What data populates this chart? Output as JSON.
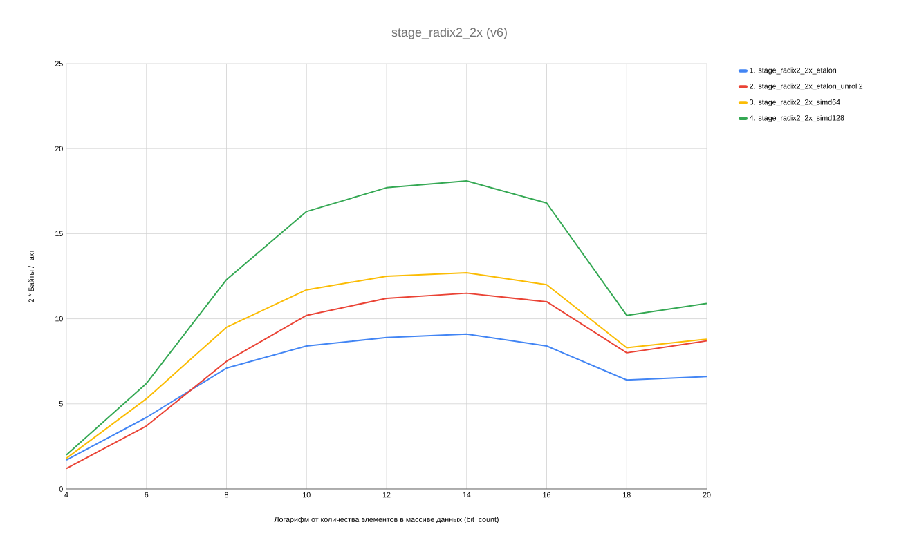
{
  "chart_data": {
    "type": "line",
    "title": "stage_radix2_2x (v6)",
    "xlabel": "Логарифм от количества элементов в массиве данных (bit_count)",
    "ylabel": "2 * Байты / такт",
    "x": [
      4,
      6,
      8,
      10,
      12,
      14,
      16,
      18,
      20
    ],
    "series": [
      {
        "name": "1. stage_radix2_2x_etalon",
        "color": "#4285f4",
        "values": [
          1.7,
          4.2,
          7.1,
          8.4,
          8.9,
          9.1,
          8.4,
          6.4,
          6.6
        ]
      },
      {
        "name": "2. stage_radix2_2x_etalon_unroll2",
        "color": "#ea4335",
        "values": [
          1.2,
          3.7,
          7.5,
          10.2,
          11.2,
          11.5,
          11.0,
          8.0,
          8.7
        ]
      },
      {
        "name": "3. stage_radix2_2x_simd64",
        "color": "#fbbc04",
        "values": [
          1.8,
          5.3,
          9.5,
          11.7,
          12.5,
          12.7,
          12.0,
          8.3,
          8.8
        ]
      },
      {
        "name": "4. stage_radix2_2x_simd128",
        "color": "#34a853",
        "values": [
          2.0,
          6.2,
          12.3,
          16.3,
          17.7,
          18.1,
          16.8,
          10.2,
          10.9
        ]
      }
    ],
    "xlim": [
      4,
      20
    ],
    "xticks": [
      4,
      6,
      8,
      10,
      12,
      14,
      16,
      18,
      20
    ],
    "ylim": [
      0,
      25
    ],
    "yticks": [
      0,
      5,
      10,
      15,
      20,
      25
    ],
    "grid": true,
    "legend": "right",
    "marker": "none",
    "line_style": "solid"
  }
}
